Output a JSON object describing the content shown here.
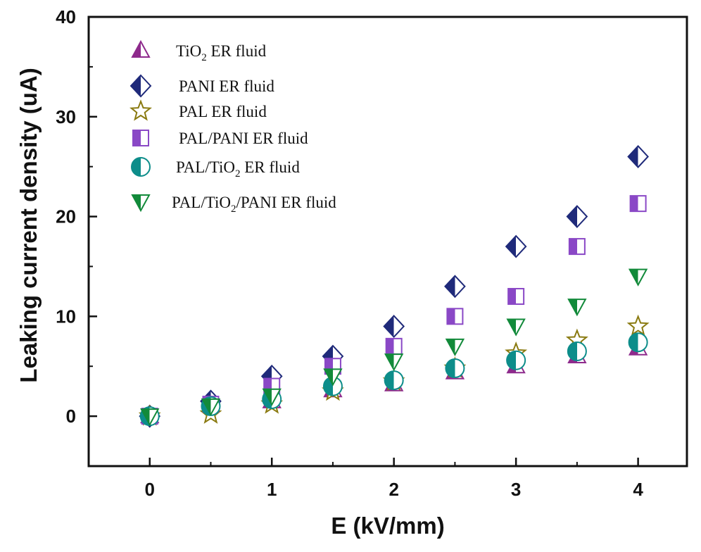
{
  "chart_data": {
    "type": "scatter",
    "xlabel": "E (kV/mm)",
    "ylabel": "Leaking current density (uA)",
    "xlim": [
      -0.5,
      4.4
    ],
    "ylim": [
      -5,
      40
    ],
    "x_ticks": [
      "0",
      "1",
      "2",
      "3",
      "4"
    ],
    "y_ticks": [
      "0",
      "10",
      "20",
      "30",
      "40"
    ],
    "x": [
      0,
      0.5,
      1,
      1.5,
      2,
      2.5,
      3,
      3.5,
      4
    ],
    "legend_position": "top-left",
    "series": [
      {
        "name": "TiO2 ER fluid",
        "label_parts": [
          "TiO",
          "2",
          " ER fluid"
        ],
        "marker": "triangle-up",
        "color": "#8e2a8c",
        "values": [
          0,
          1.5,
          1.5,
          2.6,
          3.2,
          4.4,
          5,
          6,
          6.8
        ]
      },
      {
        "name": "PANI ER fluid",
        "label_parts": [
          "PANI ER fluid"
        ],
        "marker": "diamond",
        "color": "#1f2a7a",
        "values": [
          0,
          1.5,
          4,
          6,
          9,
          13,
          17,
          20,
          26
        ]
      },
      {
        "name": "PAL ER fluid",
        "label_parts": [
          "PAL ER fluid"
        ],
        "marker": "star",
        "color": "#8a7a10",
        "values": [
          0,
          0.2,
          1.2,
          2.5,
          3.5,
          4.8,
          6.3,
          7.6,
          9
        ]
      },
      {
        "name": "PAL/PANI ER fluid",
        "label_parts": [
          "PAL/PANI ER fluid"
        ],
        "marker": "square",
        "color": "#8a48c6",
        "values": [
          0,
          1.2,
          3,
          5,
          7,
          10,
          12,
          17,
          21.3
        ]
      },
      {
        "name": "PAL/TiO2 ER fluid",
        "label_parts": [
          "PAL/TiO",
          "2",
          " ER fluid"
        ],
        "marker": "circle",
        "color": "#0d8d8a",
        "values": [
          0,
          1,
          1.7,
          3,
          3.6,
          4.8,
          5.6,
          6.5,
          7.4
        ]
      },
      {
        "name": "PAL/TiO2/PANI ER fluid",
        "label_parts": [
          "PAL/TiO",
          "2",
          "/PANI ER fluid"
        ],
        "marker": "triangle-down",
        "color": "#128a3a",
        "values": [
          0,
          1,
          2,
          4,
          5.5,
          7,
          9,
          11,
          14
        ]
      }
    ]
  }
}
